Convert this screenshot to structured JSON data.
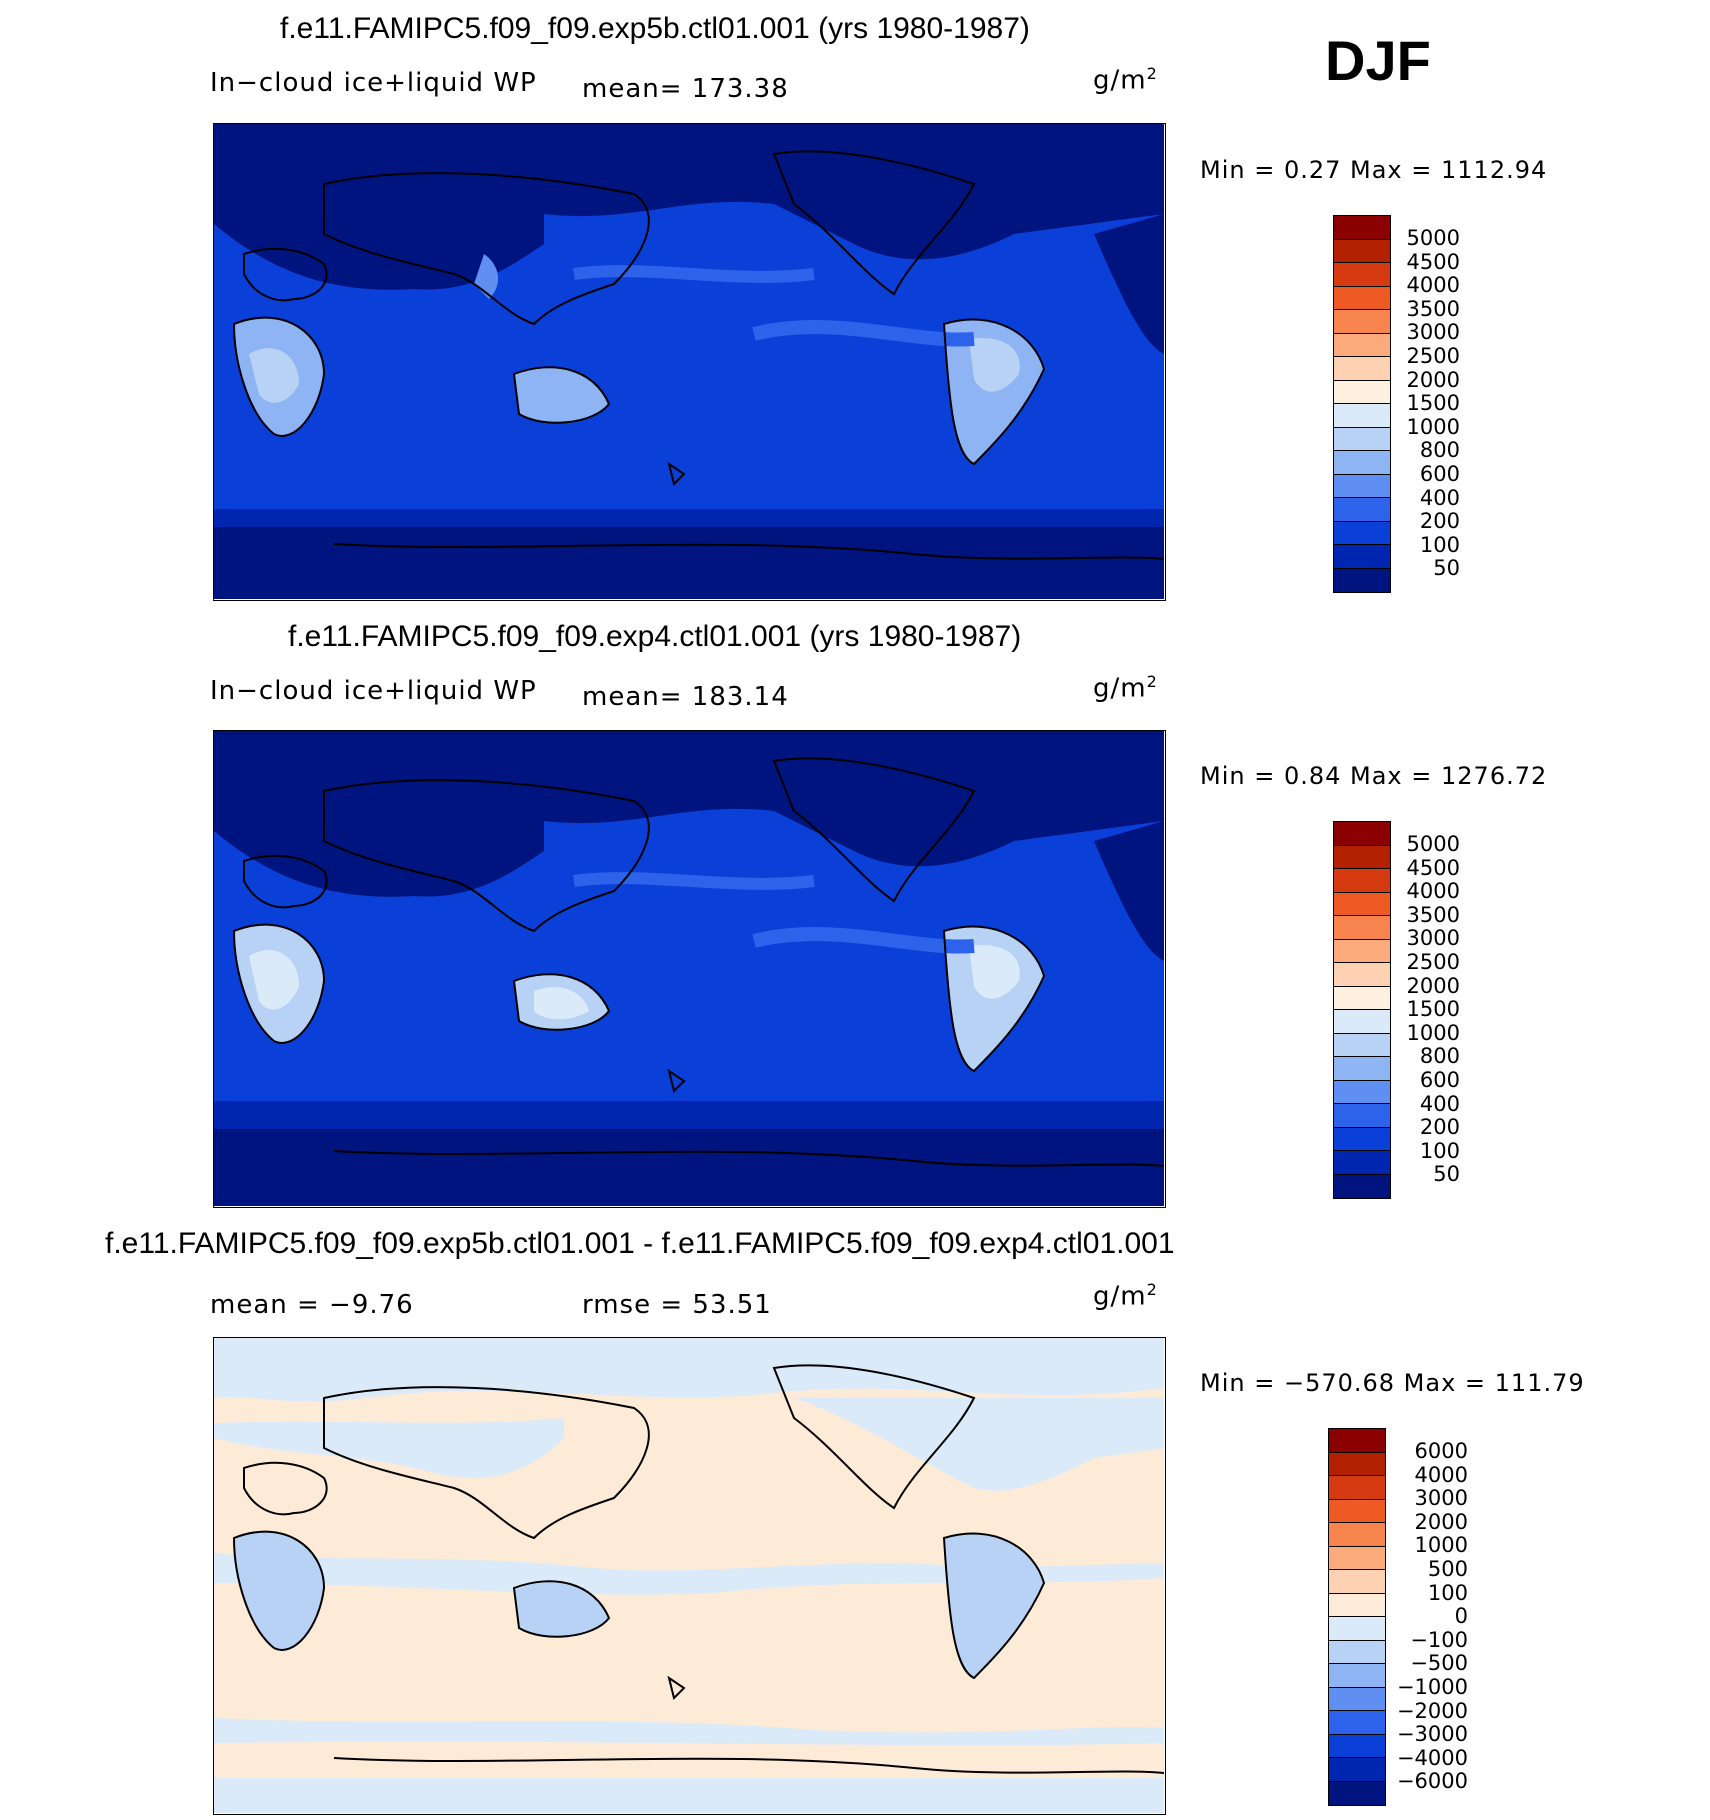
{
  "season": "DJF",
  "units_label": "g/m",
  "units_exp": "2",
  "panels": [
    {
      "title": "f.e11.FAMIPC5.f09_f09.exp5b.ctl01.001 (yrs 1980-1987)",
      "variable": "In−cloud ice+liquid WP",
      "stat_left": "mean=  173.38",
      "minmax": "Min  =     0.27  Max  =  1112.94",
      "colorbar": {
        "labels": [
          "5000",
          "4500",
          "4000",
          "3500",
          "3000",
          "2500",
          "2000",
          "1500",
          "1000",
          "800",
          "600",
          "400",
          "200",
          "100",
          "50"
        ],
        "colors": [
          "#8b0000",
          "#b22000",
          "#d63a10",
          "#ee5a24",
          "#f6844c",
          "#fbaa7c",
          "#fdd1b2",
          "#fdf0df",
          "#dbeaf8",
          "#b8d2f6",
          "#8fb4f3",
          "#5f8ff0",
          "#2d63ea",
          "#0a3fd8",
          "#0026b0",
          "#001480"
        ]
      }
    },
    {
      "title": "f.e11.FAMIPC5.f09_f09.exp4.ctl01.001 (yrs 1980-1987)",
      "variable": "In−cloud ice+liquid WP",
      "stat_left": "mean=  183.14",
      "minmax": "Min  =     0.84  Max  =  1276.72",
      "colorbar": {
        "labels": [
          "5000",
          "4500",
          "4000",
          "3500",
          "3000",
          "2500",
          "2000",
          "1500",
          "1000",
          "800",
          "600",
          "400",
          "200",
          "100",
          "50"
        ],
        "colors": [
          "#8b0000",
          "#b22000",
          "#d63a10",
          "#ee5a24",
          "#f6844c",
          "#fbaa7c",
          "#fdd1b2",
          "#fdf0df",
          "#dbeaf8",
          "#b8d2f6",
          "#8fb4f3",
          "#5f8ff0",
          "#2d63ea",
          "#0a3fd8",
          "#0026b0",
          "#001480"
        ]
      }
    },
    {
      "title": "f.e11.FAMIPC5.f09_f09.exp5b.ctl01.001 - f.e11.FAMIPC5.f09_f09.exp4.ctl01.001",
      "stat_left": "mean  =    −9.76",
      "stat_mid": "rmse  =    53.51",
      "minmax": "Min  =  −570.68  Max  =  111.79",
      "colorbar": {
        "labels": [
          "6000",
          "4000",
          "3000",
          "2000",
          "1000",
          "500",
          "100",
          "0",
          "−100",
          "−500",
          "−1000",
          "−2000",
          "−3000",
          "−4000",
          "−6000"
        ],
        "colors": [
          "#8b0000",
          "#b22000",
          "#d63a10",
          "#ee5a24",
          "#f6844c",
          "#fbaa7c",
          "#fdd1b2",
          "#fdebd8",
          "#dbeaf8",
          "#b8d2f6",
          "#8fb4f3",
          "#5f8ff0",
          "#2d63ea",
          "#0a3fd8",
          "#0026b0",
          "#001480"
        ]
      }
    }
  ]
}
